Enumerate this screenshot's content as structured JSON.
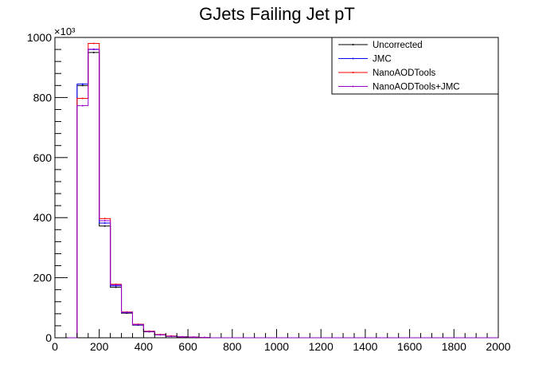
{
  "chart_data": {
    "type": "line",
    "title": "GJets Failing Jet pT",
    "xlabel": "",
    "ylabel": "",
    "y_exponent_label": "×10³",
    "y_exponent_value": 1000,
    "xlim": [
      0,
      2000
    ],
    "ylim": [
      0,
      1000
    ],
    "bin_width": 50,
    "x_ticks": [
      0,
      200,
      400,
      600,
      800,
      1000,
      1200,
      1400,
      1600,
      1800,
      2000
    ],
    "y_ticks": [
      0,
      200,
      400,
      600,
      800,
      1000
    ],
    "grid": false,
    "legend_position": "top-right",
    "series": [
      {
        "name": "Uncorrected",
        "color": "#000000",
        "bin_edges": [
          0,
          50,
          100,
          150,
          200,
          250,
          300,
          350,
          400,
          450,
          500,
          550,
          600,
          650,
          700
        ],
        "values": [
          0,
          0,
          840,
          950,
          372,
          168,
          82,
          42,
          20,
          10,
          5,
          3,
          2,
          1
        ]
      },
      {
        "name": "JMC",
        "color": "#0000ff",
        "bin_edges": [
          0,
          50,
          100,
          150,
          200,
          250,
          300,
          350,
          400,
          450,
          500,
          550,
          600,
          650,
          700
        ],
        "values": [
          0,
          0,
          845,
          960,
          382,
          173,
          84,
          43,
          21,
          10,
          5,
          3,
          2,
          1
        ]
      },
      {
        "name": "NanoAODTools",
        "color": "#ff0000",
        "bin_edges": [
          0,
          50,
          100,
          150,
          200,
          250,
          300,
          350,
          400,
          450,
          500,
          550,
          600,
          650,
          700
        ],
        "values": [
          0,
          0,
          797,
          980,
          397,
          178,
          86,
          45,
          22,
          11,
          6,
          3,
          2,
          1
        ]
      },
      {
        "name": "NanoAODTools+JMC",
        "color": "#9900cc",
        "bin_edges": [
          0,
          50,
          100,
          150,
          200,
          250,
          300,
          350,
          400,
          450,
          500,
          550,
          600,
          650,
          700
        ],
        "values": [
          0,
          0,
          773,
          961,
          390,
          176,
          85,
          44,
          21,
          10,
          5,
          3,
          2,
          1
        ]
      }
    ]
  }
}
